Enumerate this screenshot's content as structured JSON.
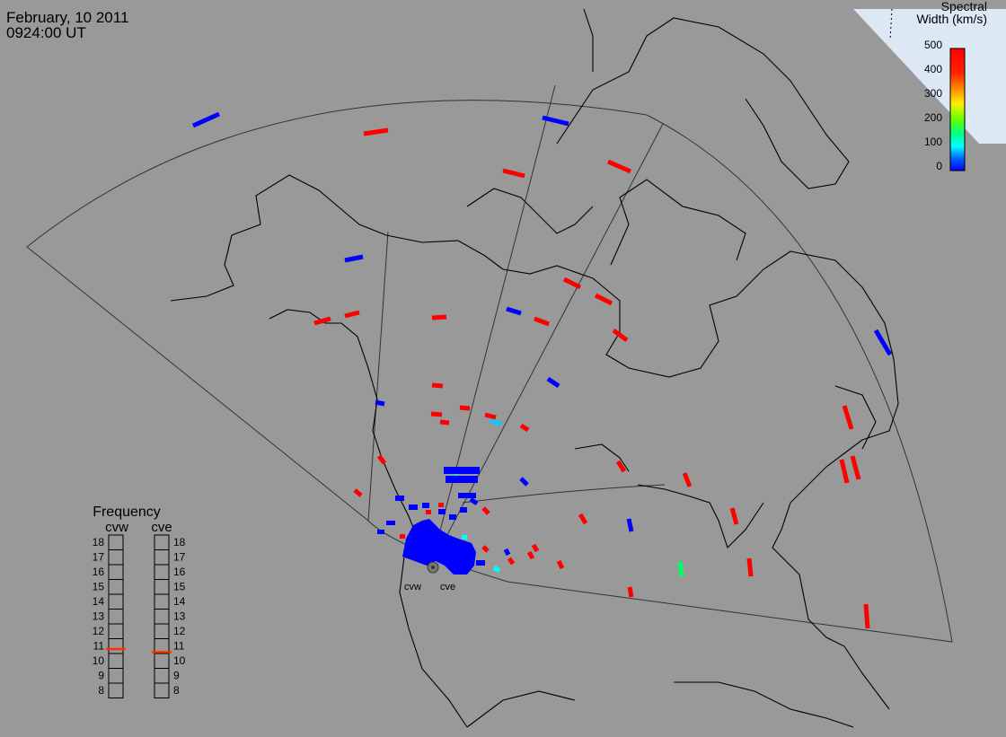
{
  "header": {
    "date": "February, 10 2011",
    "time": "0924:00 UT"
  },
  "colorbar": {
    "title_line1": "Spectral",
    "title_line2": "Width (km/s)",
    "ticks": [
      "500",
      "400",
      "300",
      "200",
      "100",
      "0"
    ],
    "colors": [
      "#ff0000",
      "#ff6600",
      "#ffcc00",
      "#99ff00",
      "#00ff66",
      "#00ffff",
      "#0066ff",
      "#0000ff"
    ]
  },
  "frequency_panel": {
    "title": "Frequency",
    "radar_left": "cvw",
    "radar_right": "cve",
    "levels": [
      "18",
      "17",
      "16",
      "15",
      "14",
      "13",
      "12",
      "11",
      "10",
      "9",
      "8"
    ],
    "cvw_value": 10.8,
    "cve_value": 10.6,
    "marker_color": "#ff3300"
  },
  "radar_labels": {
    "west": "cvw",
    "east": "cve"
  },
  "colors": {
    "background": "#999999",
    "coast": "#000000",
    "high_width": "#ff0000",
    "low_width": "#0000ff"
  }
}
